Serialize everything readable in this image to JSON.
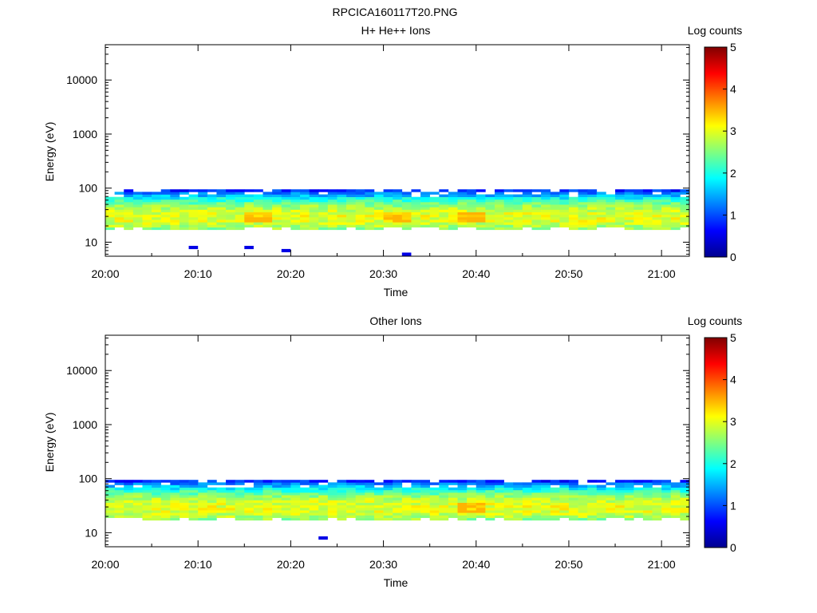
{
  "figure_title": "RPCICA160117T20.PNG",
  "chart_data": [
    {
      "type": "heatmap",
      "title": "H+ He++ Ions",
      "xlabel": "Time",
      "ylabel": "Energy (eV)",
      "x_ticks": [
        "20:00",
        "20:10",
        "20:20",
        "20:30",
        "20:40",
        "20:50",
        "21:00"
      ],
      "x_range": [
        "20:00",
        "21:03"
      ],
      "y_scale": "log",
      "y_ticks": [
        "10",
        "100",
        "1000",
        "10000"
      ],
      "ylim": [
        5.5,
        45000
      ],
      "colorbar": {
        "label": "Log counts",
        "range": [
          0,
          5
        ],
        "ticks": [
          "0",
          "1",
          "2",
          "3",
          "4",
          "5"
        ]
      },
      "grid": false,
      "dominant_band_eV": [
        17,
        95
      ],
      "peak_band_eV": [
        23,
        37
      ],
      "peak_log_counts": 3.5,
      "peak_times": [
        "20:39",
        "20:31",
        "20:16"
      ],
      "sparse_low_energy_points": [
        {
          "time": "20:09",
          "energy_eV": 8,
          "log_counts": 0.5
        },
        {
          "time": "20:15",
          "energy_eV": 8,
          "log_counts": 0.5
        },
        {
          "time": "20:19",
          "energy_eV": 7,
          "log_counts": 0.5
        },
        {
          "time": "20:32",
          "energy_eV": 6,
          "log_counts": 0.5
        }
      ]
    },
    {
      "type": "heatmap",
      "title": "Other Ions",
      "xlabel": "Time",
      "ylabel": "Energy (eV)",
      "x_ticks": [
        "20:00",
        "20:10",
        "20:20",
        "20:30",
        "20:40",
        "20:50",
        "21:00"
      ],
      "x_range": [
        "20:00",
        "21:03"
      ],
      "y_scale": "log",
      "y_ticks": [
        "10",
        "100",
        "1000",
        "10000"
      ],
      "ylim": [
        5.5,
        45000
      ],
      "colorbar": {
        "label": "Log counts",
        "range": [
          0,
          5
        ],
        "ticks": [
          "0",
          "1",
          "2",
          "3",
          "4",
          "5"
        ]
      },
      "grid": false,
      "dominant_band_eV": [
        17,
        95
      ],
      "peak_band_eV": [
        23,
        37
      ],
      "peak_log_counts": 3.5,
      "peak_times": [
        "20:39"
      ],
      "sparse_low_energy_points": [
        {
          "time": "20:23",
          "energy_eV": 8,
          "log_counts": 0.5
        }
      ]
    }
  ]
}
